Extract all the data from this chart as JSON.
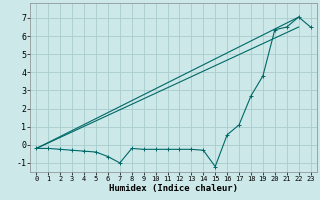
{
  "xlabel": "Humidex (Indice chaleur)",
  "bg_color": "#cce8e8",
  "grid_color": "#aacccc",
  "line_color": "#006868",
  "xlim": [
    -0.5,
    23.5
  ],
  "ylim": [
    -1.5,
    7.8
  ],
  "yticks": [
    -1,
    0,
    1,
    2,
    3,
    4,
    5,
    6,
    7
  ],
  "xticks": [
    0,
    1,
    2,
    3,
    4,
    5,
    6,
    7,
    8,
    9,
    10,
    11,
    12,
    13,
    14,
    15,
    16,
    17,
    18,
    19,
    20,
    21,
    22,
    23
  ],
  "line1_x": [
    0,
    22
  ],
  "line1_y": [
    -0.2,
    6.5
  ],
  "line2_x": [
    0,
    22
  ],
  "line2_y": [
    -0.2,
    7.05
  ],
  "line3_x": [
    0,
    1,
    2,
    3,
    4,
    5,
    6,
    7,
    8,
    9,
    10,
    11,
    12,
    13,
    14,
    15,
    16,
    17,
    18,
    19,
    20,
    21,
    22,
    23
  ],
  "line3_y": [
    -0.2,
    -0.2,
    -0.25,
    -0.3,
    -0.35,
    -0.4,
    -0.65,
    -1.0,
    -0.2,
    -0.25,
    -0.25,
    -0.25,
    -0.25,
    -0.25,
    -0.3,
    -1.2,
    0.55,
    1.1,
    2.7,
    3.8,
    6.35,
    6.5,
    7.05,
    6.5
  ]
}
